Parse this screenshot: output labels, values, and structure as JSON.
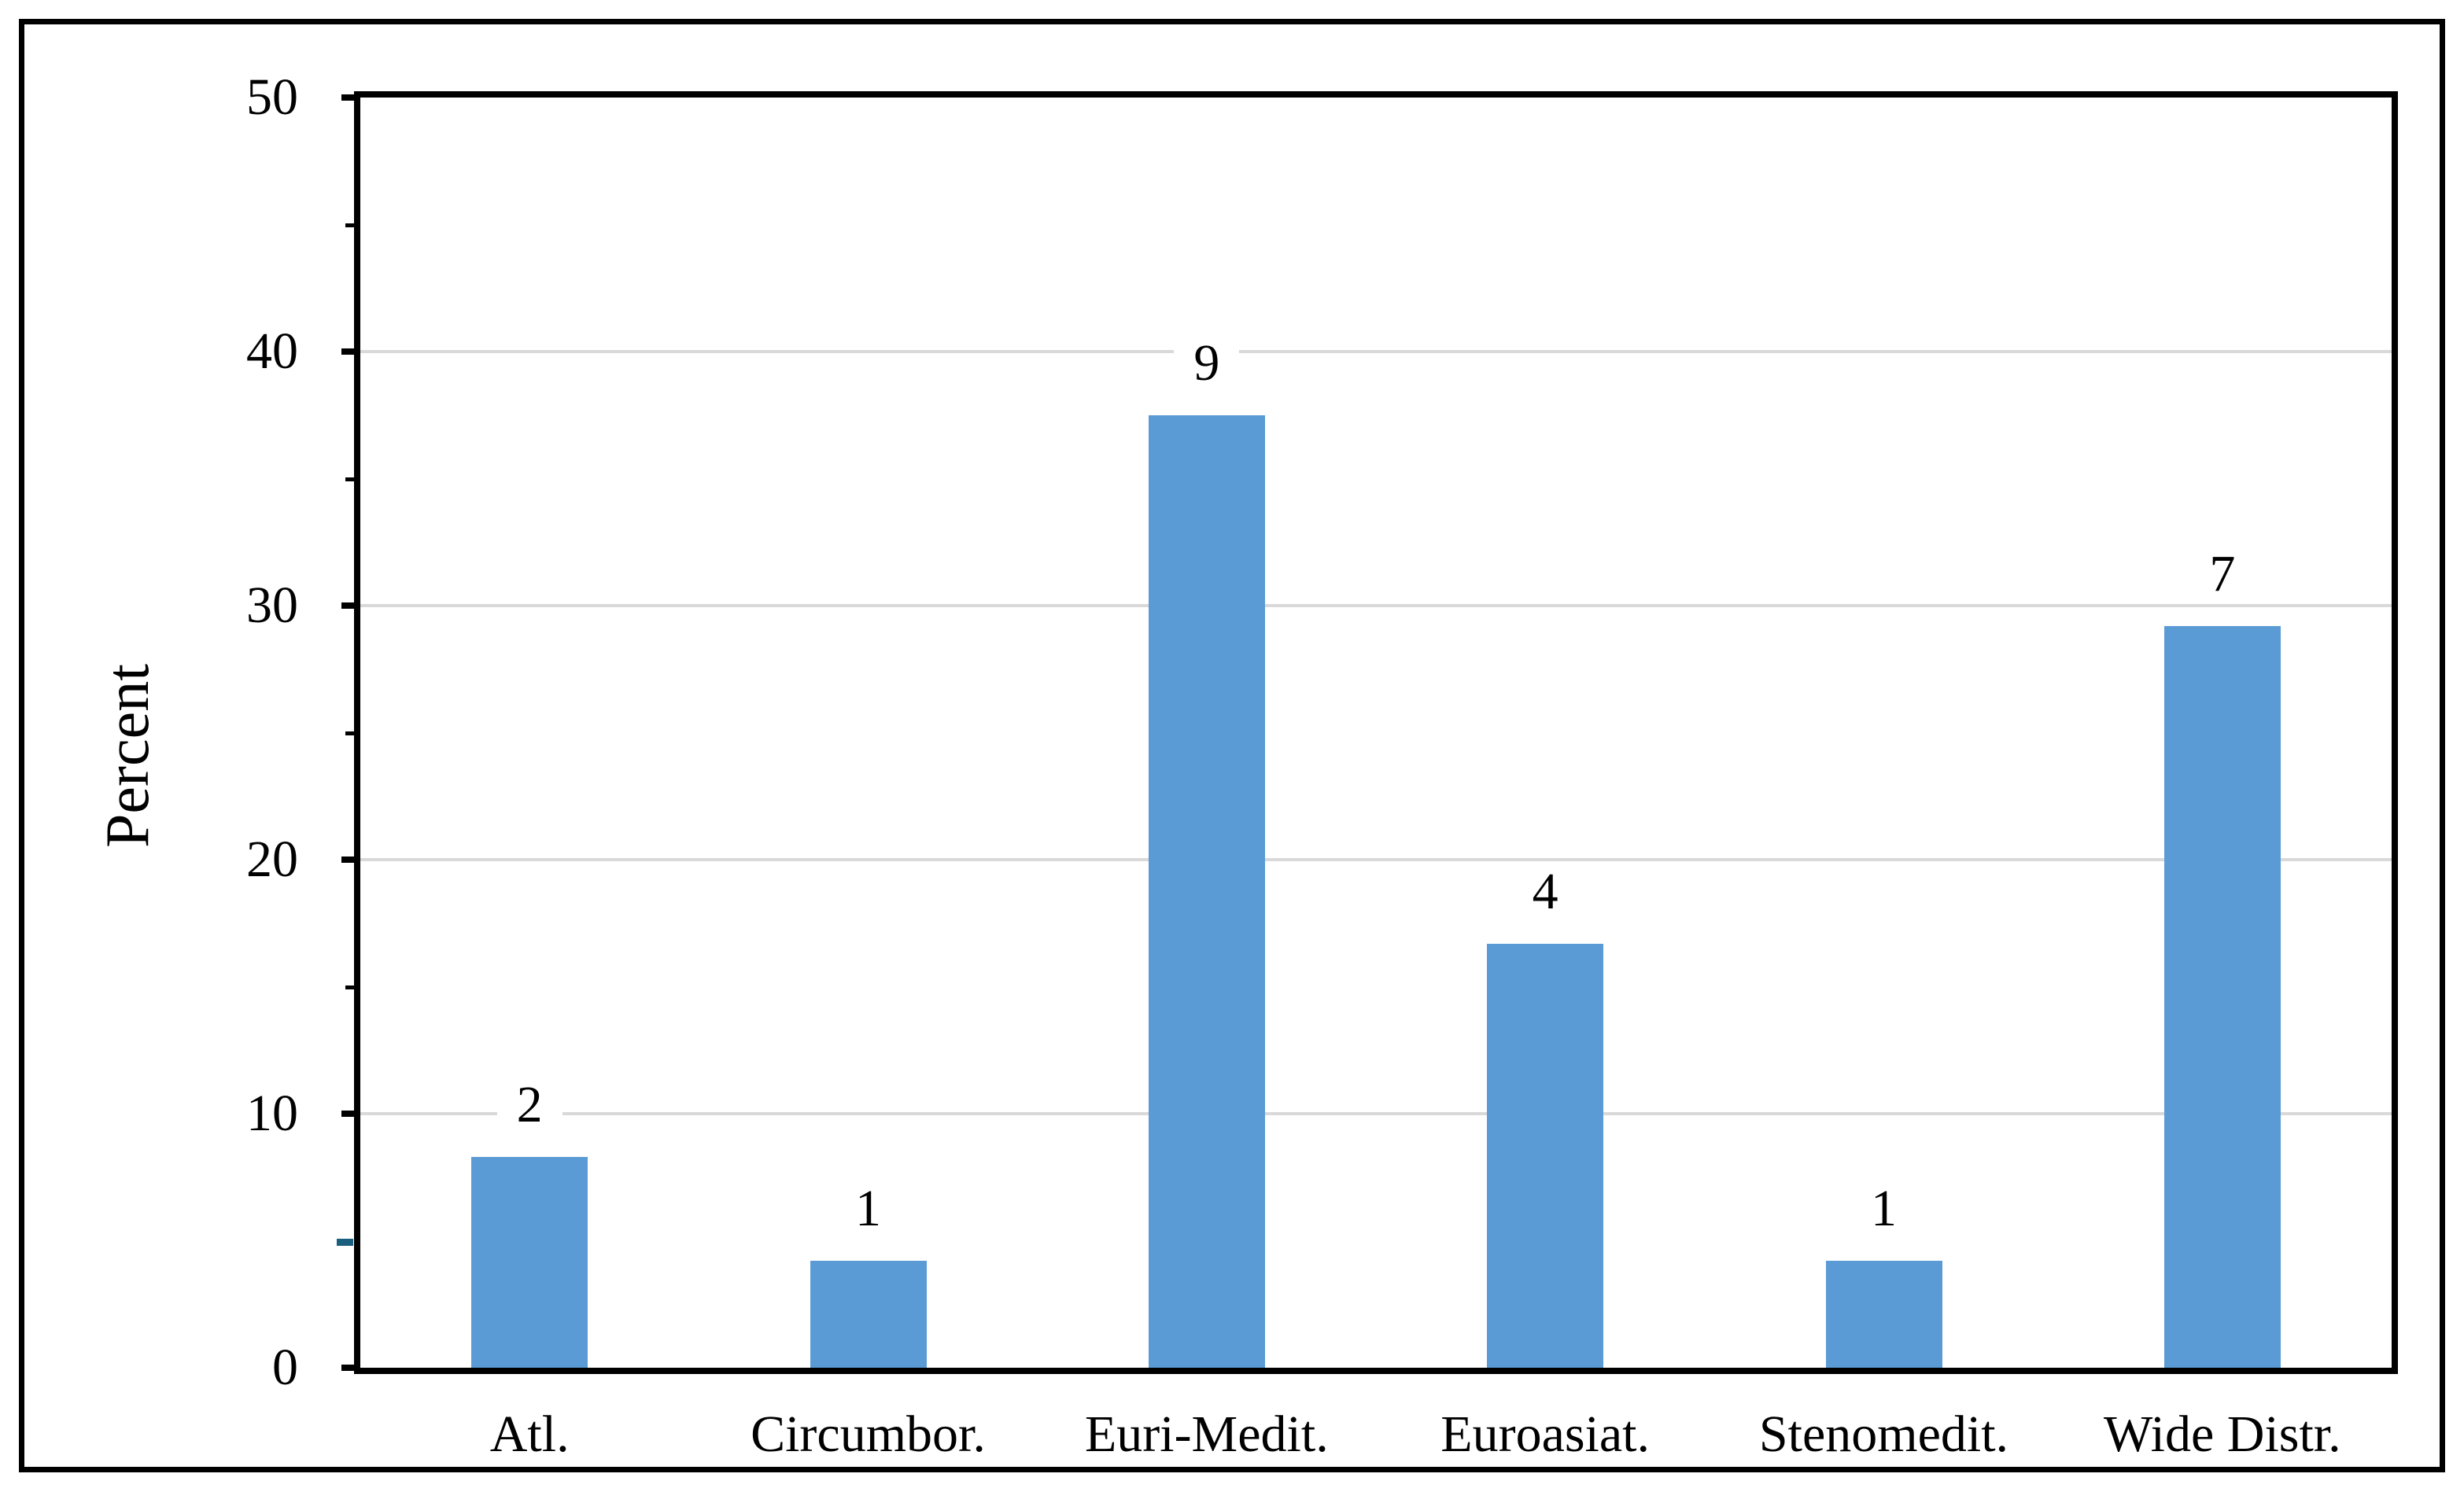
{
  "figure": {
    "background": "#FFFFFF",
    "border_color": "#000000"
  },
  "chart_data": {
    "type": "bar",
    "title": "",
    "xlabel": "",
    "ylabel": "Percent",
    "categories": [
      "Atl.",
      "Circumbor.",
      "Euri-Medit.",
      "Euroasiat.",
      "Stenomedit.",
      "Wide Distr."
    ],
    "series": [
      {
        "name": "Percent",
        "values": [
          8.3,
          4.2,
          37.5,
          16.7,
          4.2,
          29.2
        ],
        "data_labels": [
          "2",
          "1",
          "9",
          "4",
          "1",
          "7"
        ]
      }
    ],
    "ylim": [
      0,
      50
    ],
    "y_major_ticks": [
      {
        "value": 0,
        "label": "0"
      },
      {
        "value": 10,
        "label": "10"
      },
      {
        "value": 20,
        "label": "20"
      },
      {
        "value": 30,
        "label": "30"
      },
      {
        "value": 40,
        "label": "40"
      },
      {
        "value": 50,
        "label": "50"
      }
    ],
    "y_minor_tick_values": [
      15,
      25,
      35,
      45
    ],
    "stray_tick_value": 5,
    "grid": "horizontal major gridlines",
    "legend_position": "none",
    "colors": {
      "bar": "#5B9BD5",
      "gridline": "#D9D9D9",
      "axis": "#000000",
      "stray_tick": "#1A5F7E",
      "text": "#000000"
    }
  }
}
